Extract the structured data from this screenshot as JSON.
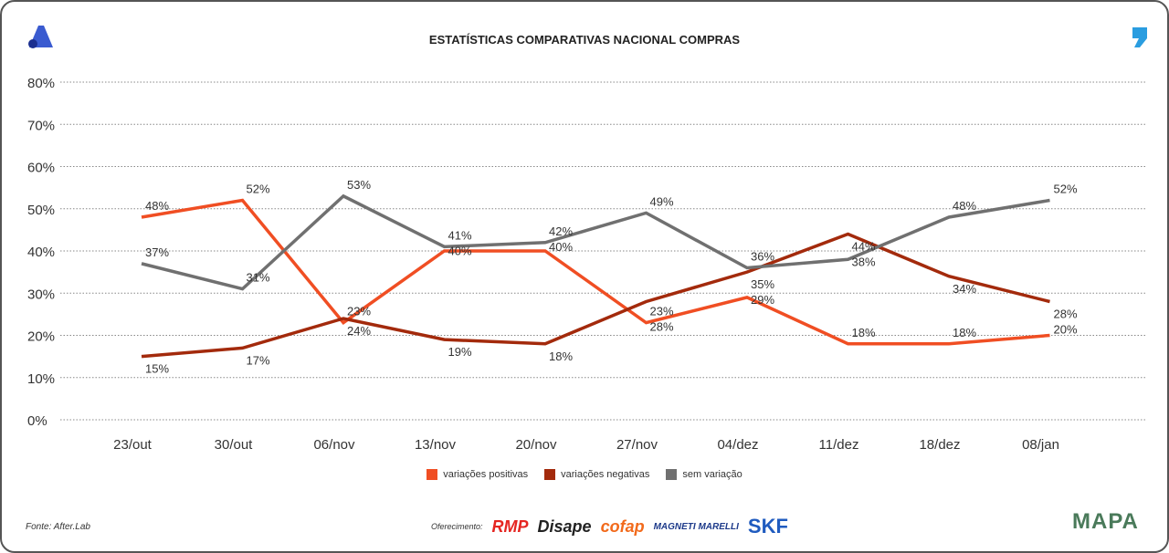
{
  "chart_data": {
    "type": "line",
    "title": "ESTATÍSTICAS COMPARATIVAS NACIONAL COMPRAS",
    "categories": [
      "23/out",
      "30/out",
      "06/nov",
      "13/nov",
      "20/nov",
      "27/nov",
      "04/dez",
      "11/dez",
      "18/dez",
      "08/jan"
    ],
    "yticks": [
      "0%",
      "10%",
      "20%",
      "30%",
      "40%",
      "50%",
      "60%",
      "70%",
      "80%"
    ],
    "ylim": [
      0,
      80
    ],
    "grid": true,
    "legend_placement": "bottom",
    "series": [
      {
        "name": "variações positivas",
        "color": "#f04e23",
        "values": [
          48,
          52,
          23,
          40,
          40,
          23,
          29,
          18,
          18,
          20
        ]
      },
      {
        "name": "variações negativas",
        "color": "#a32a0c",
        "values": [
          15,
          17,
          24,
          19,
          18,
          28,
          35,
          44,
          34,
          28
        ]
      },
      {
        "name": "sem variação",
        "color": "#707070",
        "values": [
          37,
          31,
          53,
          41,
          42,
          49,
          36,
          38,
          48,
          52
        ]
      }
    ]
  },
  "footer": {
    "source": "Fonte: After.Lab",
    "sponsor_label": "Oferecimento:",
    "sponsors": [
      "RMP",
      "Disape",
      "cofap",
      "MAGNETI MARELLI",
      "SKF"
    ],
    "partner": "MAPA"
  }
}
